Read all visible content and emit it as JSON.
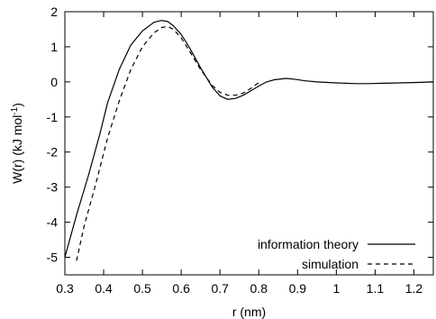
{
  "chart_data": {
    "type": "line",
    "title": "",
    "xlabel": "r (nm)",
    "ylabel_main": "W(r) (kJ mol",
    "ylabel_sup": "-1",
    "ylabel_close": ")",
    "xlim": [
      0.3,
      1.25
    ],
    "ylim": [
      -5.5,
      2
    ],
    "xticks": [
      {
        "value": 0.3,
        "label": "0.3"
      },
      {
        "value": 0.4,
        "label": "0.4"
      },
      {
        "value": 0.5,
        "label": "0.5"
      },
      {
        "value": 0.6,
        "label": "0.6"
      },
      {
        "value": 0.7,
        "label": "0.7"
      },
      {
        "value": 0.8,
        "label": "0.8"
      },
      {
        "value": 0.9,
        "label": "0.9"
      },
      {
        "value": 1.0,
        "label": "1"
      },
      {
        "value": 1.1,
        "label": "1.1"
      },
      {
        "value": 1.2,
        "label": "1.2"
      }
    ],
    "yticks": [
      {
        "value": 2,
        "label": "2"
      },
      {
        "value": 1,
        "label": "1"
      },
      {
        "value": 0,
        "label": "0"
      },
      {
        "value": -1,
        "label": "-1"
      },
      {
        "value": -2,
        "label": "-2"
      },
      {
        "value": -3,
        "label": "-3"
      },
      {
        "value": -4,
        "label": "-4"
      },
      {
        "value": -5,
        "label": "-5"
      }
    ],
    "grid": false,
    "legend_position": "bottom-right",
    "series": [
      {
        "name": "information theory",
        "style": "solid",
        "color": "#000000",
        "x": [
          0.3,
          0.33,
          0.36,
          0.39,
          0.41,
          0.44,
          0.47,
          0.5,
          0.53,
          0.55,
          0.565,
          0.58,
          0.6,
          0.62,
          0.65,
          0.68,
          0.7,
          0.72,
          0.74,
          0.76,
          0.78,
          0.8,
          0.82,
          0.84,
          0.87,
          0.89,
          0.92,
          0.95,
          1.0,
          1.05,
          1.08,
          1.12,
          1.16,
          1.2,
          1.25
        ],
        "y": [
          -5.0,
          -3.8,
          -2.7,
          -1.5,
          -0.6,
          0.35,
          1.05,
          1.45,
          1.7,
          1.75,
          1.72,
          1.6,
          1.35,
          1.0,
          0.4,
          -0.15,
          -0.4,
          -0.5,
          -0.47,
          -0.38,
          -0.25,
          -0.12,
          0.0,
          0.06,
          0.1,
          0.08,
          0.03,
          0.0,
          -0.03,
          -0.05,
          -0.05,
          -0.04,
          -0.03,
          -0.02,
          0.0
        ]
      },
      {
        "name": "simulation",
        "style": "dashed",
        "color": "#000000",
        "x": [
          0.33,
          0.35,
          0.38,
          0.41,
          0.44,
          0.47,
          0.5,
          0.53,
          0.55,
          0.565,
          0.58,
          0.6,
          0.62,
          0.65,
          0.68,
          0.7,
          0.72,
          0.74,
          0.76,
          0.78,
          0.8
        ],
        "y": [
          -5.1,
          -4.1,
          -2.9,
          -1.6,
          -0.55,
          0.35,
          1.0,
          1.4,
          1.55,
          1.58,
          1.5,
          1.25,
          0.9,
          0.35,
          -0.1,
          -0.3,
          -0.38,
          -0.38,
          -0.32,
          -0.18,
          -0.02
        ]
      }
    ]
  }
}
